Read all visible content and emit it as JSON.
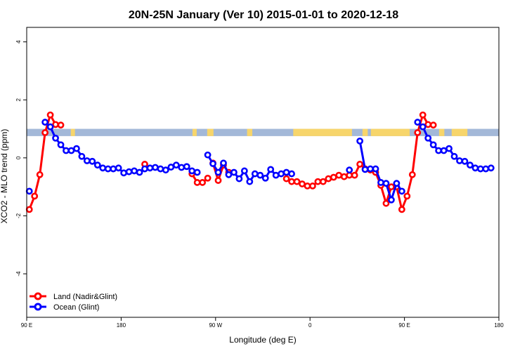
{
  "chart_data": {
    "type": "line",
    "title": "20N-25N January (Ver 10)   2015-01-01 to 2020-12-18",
    "xlabel": "Longitude (deg E)",
    "ylabel": "XCO2 - MLO trend (ppm)",
    "xlim": [
      90,
      540
    ],
    "ylim": [
      -5.5,
      4.5
    ],
    "x_ticks": [
      {
        "value": 90,
        "label": "90 E"
      },
      {
        "value": 180,
        "label": "180"
      },
      {
        "value": 270,
        "label": "90 W"
      },
      {
        "value": 360,
        "label": "0"
      },
      {
        "value": 450,
        "label": "90 E"
      },
      {
        "value": 540,
        "label": "180"
      }
    ],
    "y_ticks": [
      {
        "value": -4,
        "label": "-4"
      },
      {
        "value": -2,
        "label": "-2"
      },
      {
        "value": 0,
        "label": "0"
      },
      {
        "value": 2,
        "label": "2"
      },
      {
        "value": 4,
        "label": "4"
      }
    ],
    "map_strip": {
      "y_range": [
        0.75,
        1.0
      ],
      "ocean_color": "#a3b8d8",
      "land_color": "#f7d56b"
    },
    "legend_position": "bottom-left",
    "series": [
      {
        "name": "Land (Nadir&Glint)",
        "color": "#ff0000",
        "points": [
          [
            92.5,
            -1.78
          ],
          [
            97.5,
            -1.32
          ],
          [
            102.5,
            -0.58
          ],
          [
            107.5,
            0.87
          ],
          [
            112.5,
            1.48
          ],
          [
            117.5,
            1.15
          ],
          [
            122.5,
            1.13
          ],
          [
            112.5,
            1.48
          ],
          [
            112.5,
            1.48
          ],
          [
            112.5,
            1.48
          ],
          [
            112.5,
            1.48
          ],
          [
            112.5,
            1.48
          ],
          [
            112.5,
            1.48
          ]
        ],
        "segments": [
          [
            [
              92.5,
              -1.78
            ],
            [
              97.5,
              -1.32
            ],
            [
              102.5,
              -0.58
            ],
            [
              107.5,
              0.87
            ],
            [
              112.5,
              1.48
            ],
            [
              117.5,
              1.15
            ],
            [
              122.5,
              1.13
            ]
          ],
          [
            [
              112.5,
              1.48
            ],
            [
              117.5,
              1.15
            ]
          ],
          [
            [
              112.5,
              1.48
            ]
          ],
          [
            [
              112.5,
              1.48
            ]
          ],
          [
            [
              112.5,
              1.48
            ]
          ]
        ]
      }
    ]
  },
  "legend": {
    "land_label": "Land (Nadir&Glint)",
    "ocean_label": "Ocean (Glint)"
  }
}
